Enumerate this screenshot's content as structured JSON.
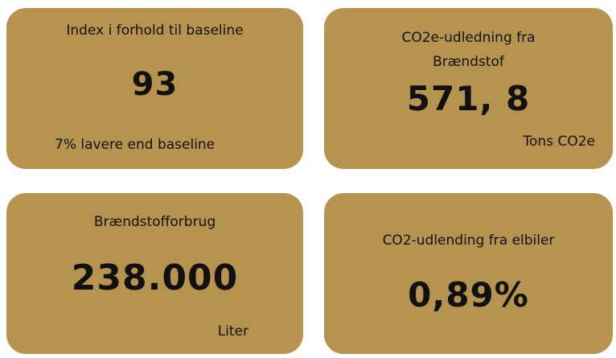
{
  "cards": [
    {
      "title": "Index i forhold til baseline",
      "value": "93",
      "note": "7% lavere end baseline"
    },
    {
      "title": "CO2e-udledning fra Brændstof",
      "value": "571, 8",
      "note": "Tons CO2e"
    },
    {
      "title": "Brændstofforbrug",
      "value": "238.000",
      "note": "Liter"
    },
    {
      "title": "CO2-udlending fra elbiler",
      "value": "0,89%"
    }
  ]
}
